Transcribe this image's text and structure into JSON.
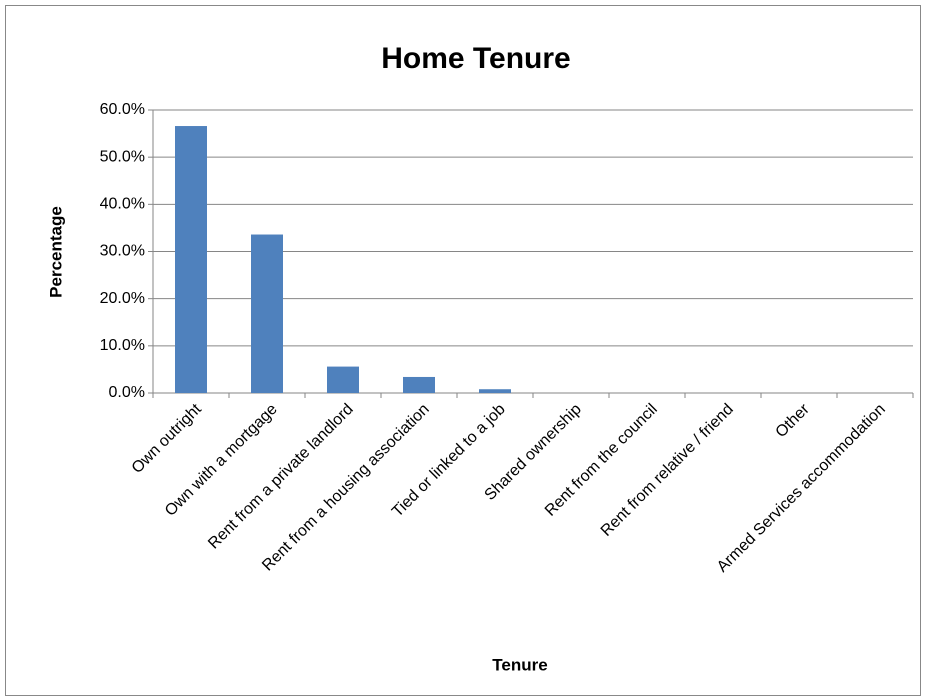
{
  "chart_data": {
    "type": "bar",
    "title": "Home Tenure",
    "x_label": "Tenure",
    "y_label": "Percentage",
    "categories": [
      "Own outright",
      "Own with a mortgage",
      "Rent from a private landlord",
      "Rent from a housing association",
      "Tied or linked to a job",
      "Shared ownership",
      "Rent from the council",
      "Rent from relative / friend",
      "Other",
      "Armed Services accommodation"
    ],
    "values": [
      56.6,
      33.6,
      5.6,
      3.4,
      0.8,
      0,
      0,
      0,
      0,
      0
    ],
    "color": "#4f81bd",
    "ylim": [
      0,
      60
    ],
    "yticks": [
      {
        "value": 0,
        "label": "0.0%"
      },
      {
        "value": 10,
        "label": "10.0%"
      },
      {
        "value": 20,
        "label": "20.0%"
      },
      {
        "value": 30,
        "label": "30.0%"
      },
      {
        "value": 40,
        "label": "40.0%"
      },
      {
        "value": 50,
        "label": "50.0%"
      },
      {
        "value": 60,
        "label": "60.0%"
      }
    ],
    "grid": true
  }
}
